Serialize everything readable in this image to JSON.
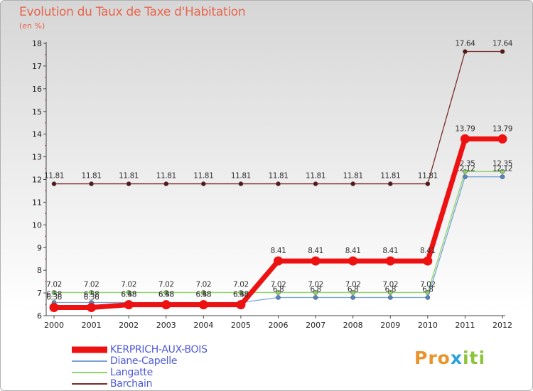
{
  "title": "Evolution du Taux de Taxe d'Habitation",
  "unit": "(en %)",
  "logo": {
    "p1": "Pro",
    "x": "x",
    "p2": "iti"
  },
  "chart_data": {
    "type": "line",
    "title": "Evolution du Taux de Taxe d'Habitation",
    "ylabel": "(en %)",
    "xlabel": "",
    "ylim": [
      6,
      18
    ],
    "yticks": [
      "6",
      "7",
      "8",
      "9",
      "10",
      "11",
      "12",
      "13",
      "14",
      "15",
      "16",
      "17",
      "18"
    ],
    "categories": [
      "2000",
      "2001",
      "2002",
      "2003",
      "2004",
      "2005",
      "2006",
      "2007",
      "2008",
      "2009",
      "2010",
      "2011",
      "2012"
    ],
    "series": [
      {
        "name": "Barchain",
        "color": "#7b2a2a",
        "width": 1.3,
        "values": [
          11.81,
          11.81,
          11.81,
          11.81,
          11.81,
          11.81,
          11.81,
          11.81,
          11.81,
          11.81,
          11.81,
          17.64,
          17.64
        ],
        "labels": [
          "11.81",
          "11.81",
          "11.81",
          "11.81",
          "11.81",
          "11.81",
          "11.81",
          "11.81",
          "11.81",
          "11.81",
          "11.81",
          "17.64",
          "17.64"
        ]
      },
      {
        "name": "Langatte",
        "color": "#8ed46a",
        "width": 1.3,
        "values": [
          7.02,
          7.02,
          7.02,
          7.02,
          7.02,
          7.02,
          7.02,
          7.02,
          7.02,
          7.02,
          7.02,
          12.35,
          12.35
        ],
        "labels": [
          "7.02",
          "7.02",
          "7.02",
          "7.02",
          "7.02",
          "7.02",
          "7.02",
          "7.02",
          "7.02",
          "7.02",
          "7.02",
          "12.35",
          "12.35"
        ]
      },
      {
        "name": "Diane-Capelle",
        "color": "#7aa4d6",
        "width": 1.3,
        "values": [
          6.58,
          6.58,
          6.58,
          6.58,
          6.58,
          6.58,
          6.8,
          6.8,
          6.8,
          6.8,
          6.8,
          12.12,
          12.12
        ],
        "labels": [
          "6.58",
          "6.58",
          "6.58",
          "6.58",
          "6.58",
          "6.58",
          "6.8",
          "6.8",
          "6.8",
          "6.8",
          "6.8",
          "12.12",
          "12.12"
        ]
      },
      {
        "name": "KERPRICH-AUX-BOIS",
        "color": "#ee1111",
        "width": 7,
        "values": [
          6.36,
          6.36,
          6.48,
          6.48,
          6.48,
          6.48,
          8.41,
          8.41,
          8.41,
          8.41,
          8.41,
          13.79,
          13.79
        ],
        "labels": [
          "6.36",
          "6.36",
          "6.48",
          "6.48",
          "6.48",
          "6.48",
          "8.41",
          "8.41",
          "8.41",
          "8.41",
          "8.41",
          "13.79",
          "13.79"
        ]
      }
    ],
    "legend": [
      "KERPRICH-AUX-BOIS",
      "Diane-Capelle",
      "Langatte",
      "Barchain"
    ]
  }
}
